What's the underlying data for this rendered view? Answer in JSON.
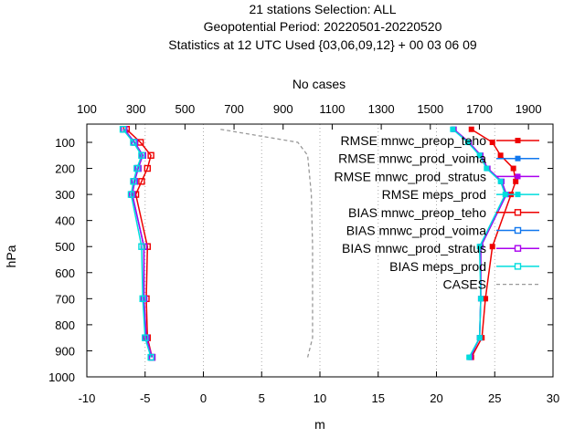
{
  "chart_data": {
    "type": "line",
    "title_lines": [
      "21 stations Selection: ALL",
      "Geopotential  Period: 20220501-20220520",
      "Statistics at 12 UTC  Used {03,06,09,12} + 00 03 06 09"
    ],
    "xlabel": "m",
    "ylabel": "hPa",
    "x2label": "No cases",
    "xlim": [
      -10,
      30
    ],
    "ylim": [
      1000,
      30
    ],
    "y_reversed": true,
    "x2lim": [
      100,
      2000
    ],
    "xticks": [
      "-10",
      "-5",
      "0",
      "5",
      "10",
      "15",
      "20",
      "25",
      "30"
    ],
    "yticks": [
      "100",
      "200",
      "300",
      "400",
      "500",
      "600",
      "700",
      "800",
      "900",
      "1000"
    ],
    "x2ticks": [
      "100",
      "300",
      "500",
      "700",
      "900",
      "1100",
      "1300",
      "1500",
      "1700",
      "1900"
    ],
    "legend_position": "top-right",
    "levels": [
      50,
      100,
      150,
      200,
      250,
      300,
      500,
      700,
      850,
      925
    ],
    "series": [
      {
        "name": "RMSE mnwc_preop_teho",
        "color": "#ee0000",
        "marker": "filled-square",
        "dash": false,
        "x": [
          23.0,
          24.8,
          25.5,
          26.6,
          26.8,
          26.4,
          24.8,
          24.2,
          23.9,
          23.0
        ],
        "y": [
          50,
          100,
          150,
          200,
          250,
          300,
          500,
          700,
          850,
          925
        ]
      },
      {
        "name": "RMSE mnwc_prod_voima",
        "color": "#1177ee",
        "marker": "filled-square",
        "dash": false,
        "x": [
          21.5,
          22.8,
          23.8,
          24.4,
          25.6,
          26.0,
          23.8,
          23.8,
          23.7,
          22.9
        ],
        "y": [
          50,
          100,
          150,
          200,
          250,
          300,
          500,
          700,
          850,
          925
        ]
      },
      {
        "name": "RMSE mnwc_prod_stratus",
        "color": "#aa00ee",
        "marker": "filled-square",
        "dash": false,
        "x": [
          21.5,
          22.8,
          23.8,
          24.4,
          25.6,
          26.0,
          23.8,
          23.8,
          23.7,
          22.9
        ],
        "y": [
          50,
          100,
          150,
          200,
          250,
          300,
          500,
          700,
          850,
          925
        ]
      },
      {
        "name": "RMSE meps_prod",
        "color": "#00dddd",
        "marker": "filled-square",
        "dash": false,
        "x": [
          21.4,
          22.7,
          23.7,
          24.3,
          25.5,
          25.9,
          23.7,
          23.8,
          23.7,
          22.8
        ],
        "y": [
          50,
          100,
          150,
          200,
          250,
          300,
          500,
          700,
          850,
          925
        ]
      },
      {
        "name": "BIAS mnwc_preop_teho",
        "color": "#ee0000",
        "marker": "open-square",
        "dash": false,
        "x": [
          -6.6,
          -5.4,
          -4.5,
          -4.8,
          -5.3,
          -5.8,
          -4.8,
          -4.9,
          -4.8,
          -4.4
        ],
        "y": [
          50,
          100,
          150,
          200,
          250,
          300,
          500,
          700,
          850,
          925
        ]
      },
      {
        "name": "BIAS mnwc_prod_voima",
        "color": "#1177ee",
        "marker": "open-square",
        "dash": false,
        "x": [
          -6.8,
          -5.9,
          -5.2,
          -5.6,
          -5.9,
          -6.1,
          -5.1,
          -5.1,
          -4.9,
          -4.4
        ],
        "y": [
          50,
          100,
          150,
          200,
          250,
          300,
          500,
          700,
          850,
          925
        ]
      },
      {
        "name": "BIAS mnwc_prod_stratus",
        "color": "#aa00ee",
        "marker": "open-square",
        "dash": false,
        "x": [
          -6.8,
          -5.9,
          -5.2,
          -5.6,
          -5.9,
          -6.1,
          -5.1,
          -5.1,
          -4.9,
          -4.4
        ],
        "y": [
          50,
          100,
          150,
          200,
          250,
          300,
          500,
          700,
          850,
          925
        ]
      },
      {
        "name": "BIAS meps_prod",
        "color": "#00dddd",
        "marker": "open-square",
        "dash": false,
        "x": [
          -6.9,
          -6.0,
          -5.3,
          -5.7,
          -6.0,
          -6.2,
          -5.3,
          -5.2,
          -5.0,
          -4.5
        ],
        "y": [
          50,
          100,
          150,
          200,
          250,
          300,
          500,
          700,
          850,
          925
        ]
      },
      {
        "name": "CASES",
        "color": "#999999",
        "marker": "none",
        "dash": true,
        "x2": [
          645,
          960,
          1000,
          1005,
          1010,
          1015,
          1020,
          1020,
          1020,
          1000
        ],
        "y": [
          50,
          100,
          150,
          200,
          250,
          300,
          500,
          700,
          850,
          925
        ]
      }
    ]
  }
}
